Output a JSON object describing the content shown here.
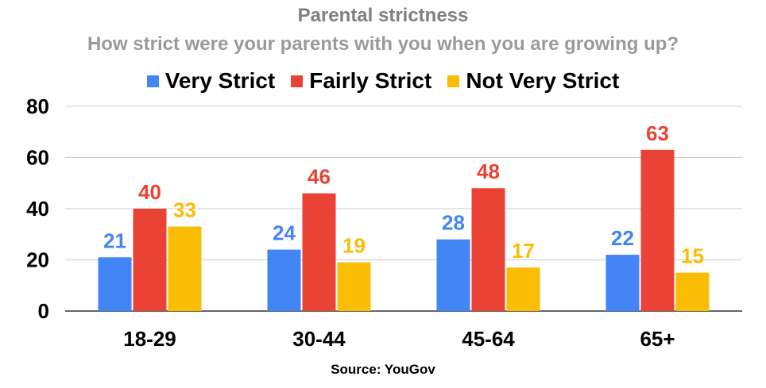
{
  "chart_data": {
    "type": "bar",
    "title": "Parental strictness",
    "subtitle": "How strict were your parents with you when you are growing up?",
    "source": "Source: YouGov",
    "categories": [
      "18-29",
      "30-44",
      "45-64",
      "65+"
    ],
    "series": [
      {
        "name": "Very Strict",
        "color": "#4285f4",
        "values": [
          21,
          24,
          28,
          22
        ]
      },
      {
        "name": "Fairly Strict",
        "color": "#ea4335",
        "values": [
          40,
          46,
          48,
          63
        ]
      },
      {
        "name": "Not Very Strict",
        "color": "#fbbc04",
        "values": [
          33,
          19,
          17,
          15
        ]
      }
    ],
    "ylim": [
      0,
      80
    ],
    "yticks": [
      0,
      20,
      40,
      60,
      80
    ],
    "grid": true,
    "legend_position": "top"
  }
}
